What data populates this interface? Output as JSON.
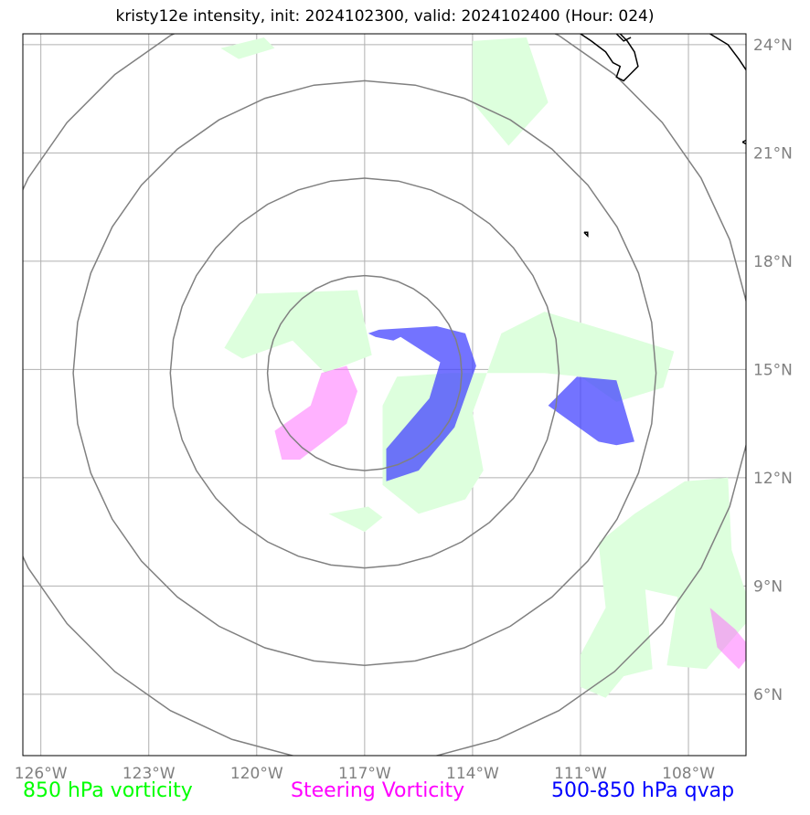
{
  "title": "kristy12e intensity, init: 2024102300, valid: 2024102400 (Hour: 024)",
  "map_extent": {
    "lon": [
      -126.5,
      -106.4
    ],
    "lat": [
      4.3,
      24.3
    ]
  },
  "storm_center": {
    "lon": -117.0,
    "lat": 14.9
  },
  "range_rings_deg": [
    2.7,
    5.4,
    8.1,
    10.8
  ],
  "gridlines": {
    "lon": [
      -126,
      -123,
      -120,
      -117,
      -114,
      -111,
      -108
    ],
    "lat": [
      6,
      9,
      12,
      15,
      18,
      21,
      24
    ]
  },
  "x_tick_labels": [
    "126°W",
    "123°W",
    "120°W",
    "117°W",
    "114°W",
    "111°W",
    "108°W"
  ],
  "y_tick_labels": [
    "6°N",
    "9°N",
    "12°N",
    "15°N",
    "18°N",
    "21°N",
    "24°N"
  ],
  "legend": [
    {
      "label": "850 hPa vorticity",
      "color": "#00ff00"
    },
    {
      "label": "Steering Vorticity",
      "color": "#ff00ff"
    },
    {
      "label": "500-850 hPa qvap",
      "color": "#0000ff"
    }
  ],
  "fill_colors": {
    "vorticity_850": "#ddffdd",
    "steering_vorticity": "#ff66ff",
    "qvap": "#4444ff",
    "ring": "#808080",
    "grid": "#b0b0b0",
    "coast": "#000000"
  },
  "vorticity_850_contours": [
    [
      [
        -121.0,
        23.9
      ],
      [
        -119.8,
        24.2
      ],
      [
        -119.5,
        23.9
      ],
      [
        -120.5,
        23.6
      ]
    ],
    [
      [
        -114.0,
        24.1
      ],
      [
        -112.5,
        24.2
      ],
      [
        -111.9,
        22.4
      ],
      [
        -113.0,
        21.2
      ],
      [
        -114.0,
        22.4
      ]
    ],
    [
      [
        -120.9,
        15.6
      ],
      [
        -120.0,
        17.1
      ],
      [
        -117.2,
        17.2
      ],
      [
        -116.8,
        15.4
      ],
      [
        -118.1,
        14.9
      ],
      [
        -119.0,
        15.8
      ],
      [
        -120.4,
        15.3
      ]
    ],
    [
      [
        -118.0,
        11.0
      ],
      [
        -116.9,
        11.2
      ],
      [
        -116.5,
        10.9
      ],
      [
        -117.0,
        10.5
      ]
    ],
    [
      [
        -116.5,
        11.8
      ],
      [
        -115.5,
        11.0
      ],
      [
        -114.2,
        11.4
      ],
      [
        -113.7,
        12.2
      ],
      [
        -114.0,
        13.8
      ],
      [
        -113.2,
        16.0
      ],
      [
        -112.0,
        16.6
      ],
      [
        -110.0,
        16.0
      ],
      [
        -108.4,
        15.5
      ],
      [
        -108.7,
        14.5
      ],
      [
        -110.0,
        14.1
      ],
      [
        -111.0,
        14.8
      ],
      [
        -112.0,
        14.9
      ],
      [
        -114.6,
        14.9
      ],
      [
        -116.1,
        14.8
      ],
      [
        -116.5,
        14.0
      ]
    ],
    [
      [
        -110.5,
        10.2
      ],
      [
        -109.5,
        11.0
      ],
      [
        -108.1,
        11.9
      ],
      [
        -106.9,
        12.0
      ],
      [
        -106.8,
        10.0
      ],
      [
        -106.2,
        8.2
      ],
      [
        -107.5,
        6.7
      ],
      [
        -108.6,
        6.8
      ],
      [
        -108.3,
        8.7
      ],
      [
        -109.2,
        8.9
      ],
      [
        -109.0,
        6.7
      ],
      [
        -109.8,
        6.5
      ],
      [
        -110.3,
        5.9
      ],
      [
        -111.0,
        6.2
      ],
      [
        -111.0,
        7.1
      ],
      [
        -110.3,
        8.4
      ]
    ]
  ],
  "steering_vorticity_contours": [
    [
      [
        -119.5,
        13.3
      ],
      [
        -118.5,
        14.0
      ],
      [
        -118.2,
        14.9
      ],
      [
        -117.5,
        15.1
      ],
      [
        -117.2,
        14.4
      ],
      [
        -117.5,
        13.5
      ],
      [
        -118.0,
        13.1
      ],
      [
        -118.8,
        12.5
      ],
      [
        -119.3,
        12.5
      ]
    ],
    [
      [
        -107.4,
        8.4
      ],
      [
        -106.7,
        7.8
      ],
      [
        -106.2,
        7.2
      ],
      [
        -106.6,
        6.7
      ],
      [
        -107.2,
        7.3
      ]
    ]
  ],
  "qvap_contours": [
    [
      [
        -116.9,
        16.0
      ],
      [
        -116.6,
        16.1
      ],
      [
        -115.0,
        16.2
      ],
      [
        -114.2,
        16.0
      ],
      [
        -113.9,
        15.1
      ],
      [
        -114.5,
        13.4
      ],
      [
        -115.5,
        12.2
      ],
      [
        -116.4,
        11.9
      ],
      [
        -116.4,
        12.8
      ],
      [
        -115.2,
        14.2
      ],
      [
        -114.9,
        15.2
      ],
      [
        -116.0,
        15.9
      ],
      [
        -116.2,
        15.8
      ],
      [
        -116.7,
        15.9
      ]
    ],
    [
      [
        -111.9,
        14.0
      ],
      [
        -111.1,
        14.8
      ],
      [
        -110.0,
        14.7
      ],
      [
        -109.5,
        13.0
      ],
      [
        -110.0,
        12.9
      ],
      [
        -110.5,
        13.0
      ],
      [
        -111.2,
        13.5
      ]
    ]
  ],
  "coastlines": [
    [
      [
        -111.0,
        24.3
      ],
      [
        -110.7,
        24.1
      ],
      [
        -110.3,
        23.8
      ],
      [
        -110.1,
        23.5
      ],
      [
        -109.9,
        23.4
      ],
      [
        -110.0,
        23.1
      ],
      [
        -109.8,
        23.0
      ],
      [
        -109.6,
        23.2
      ],
      [
        -109.4,
        23.4
      ],
      [
        -109.5,
        23.8
      ],
      [
        -109.7,
        24.1
      ],
      [
        -109.9,
        24.3
      ]
    ],
    [
      [
        -110.0,
        24.3
      ],
      [
        -109.8,
        24.1
      ],
      [
        -109.6,
        24.2
      ]
    ],
    [
      [
        -107.4,
        24.3
      ],
      [
        -106.9,
        24.0
      ],
      [
        -106.6,
        23.6
      ],
      [
        -106.4,
        23.3
      ]
    ],
    [
      [
        -106.5,
        21.3
      ],
      [
        -106.3,
        21.4
      ],
      [
        -106.3,
        21.2
      ],
      [
        -106.5,
        21.3
      ]
    ],
    [
      [
        -110.9,
        18.8
      ],
      [
        -110.8,
        18.7
      ],
      [
        -110.8,
        18.8
      ],
      [
        -110.9,
        18.8
      ]
    ]
  ]
}
